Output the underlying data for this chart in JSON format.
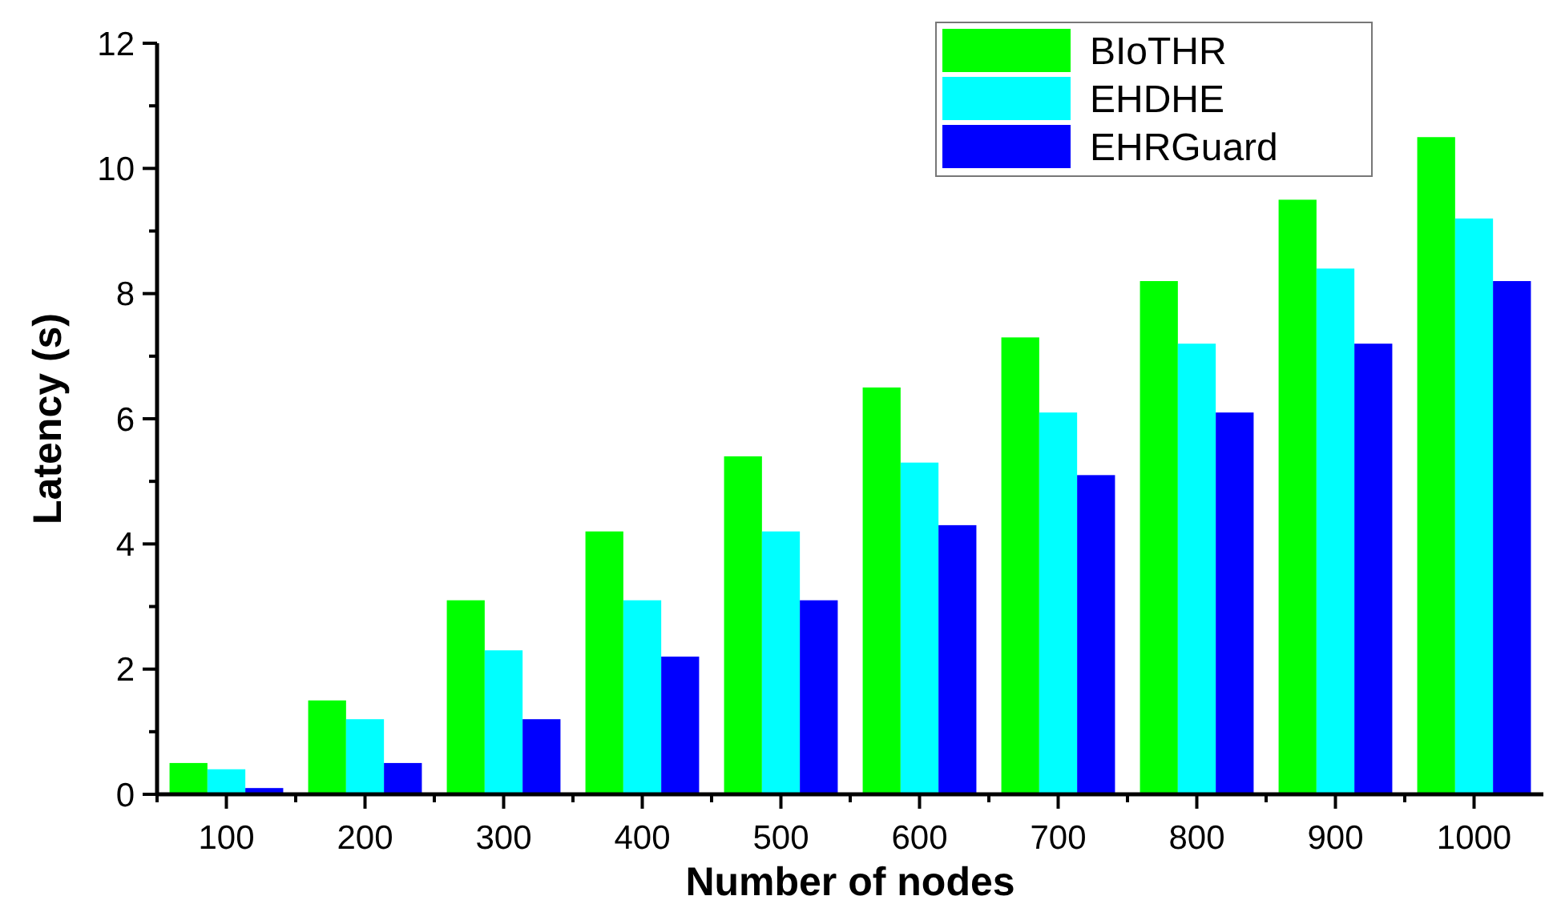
{
  "chart_data": {
    "type": "bar",
    "xlabel": "Number of nodes",
    "ylabel": "Latency (s)",
    "categories": [
      "100",
      "200",
      "300",
      "400",
      "500",
      "600",
      "700",
      "800",
      "900",
      "1000"
    ],
    "series": [
      {
        "name": "BIoTHR",
        "color": "#00ff00",
        "values": [
          0.5,
          1.5,
          3.1,
          4.2,
          5.4,
          6.5,
          7.3,
          8.2,
          9.5,
          10.5
        ]
      },
      {
        "name": "EHDHE",
        "color": "#00ffff",
        "values": [
          0.4,
          1.2,
          2.3,
          3.1,
          4.2,
          5.3,
          6.1,
          7.2,
          8.4,
          9.2
        ]
      },
      {
        "name": "EHRGuard",
        "color": "#0000ff",
        "values": [
          0.1,
          0.5,
          1.2,
          2.2,
          3.1,
          4.3,
          5.1,
          6.1,
          7.2,
          8.2
        ]
      }
    ],
    "ylim": [
      0,
      12
    ],
    "yticks": [
      0,
      {
        "value": 1,
        "label": null
      },
      2,
      {
        "value": 3,
        "label": null
      },
      4,
      {
        "value": 5,
        "label": null
      },
      6,
      {
        "value": 7,
        "label": null
      },
      8,
      {
        "value": 9,
        "label": null
      },
      10,
      {
        "value": 11,
        "label": null
      },
      12
    ],
    "grid": false,
    "legend": "top right"
  }
}
